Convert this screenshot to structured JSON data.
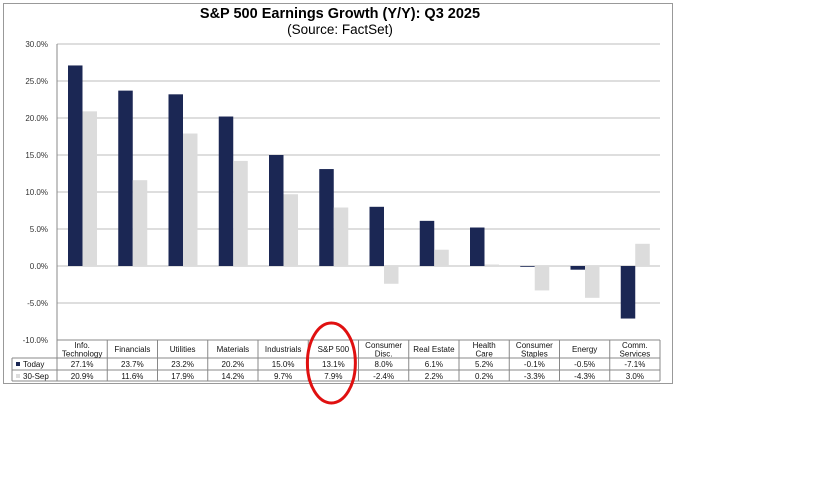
{
  "chart_data": {
    "type": "bar",
    "title": "S&P 500 Earnings Growth (Y/Y): Q3 2025",
    "subtitle": "(Source: FactSet)",
    "xlabel": "",
    "ylabel": "",
    "ylim": [
      -10,
      30
    ],
    "yticks": [
      "30.0%",
      "25.0%",
      "20.0%",
      "15.0%",
      "10.0%",
      "5.0%",
      "0.0%",
      "-5.0%",
      "-10.0%"
    ],
    "ytick_values": [
      30,
      25,
      20,
      15,
      10,
      5,
      0,
      -5,
      -10
    ],
    "grid": true,
    "legend_placement": "data-table-left",
    "categories": [
      [
        "Info.",
        "Technology"
      ],
      [
        "Financials"
      ],
      [
        "Utilities"
      ],
      [
        "Materials"
      ],
      [
        "Industrials"
      ],
      [
        "S&P 500"
      ],
      [
        "Consumer",
        "Disc."
      ],
      [
        "Real Estate"
      ],
      [
        "Health",
        "Care"
      ],
      [
        "Consumer",
        "Staples"
      ],
      [
        "Energy"
      ],
      [
        "Comm.",
        "Services"
      ]
    ],
    "series": [
      {
        "name": "Today",
        "color": "#1b2754",
        "values": [
          27.1,
          23.7,
          23.2,
          20.2,
          15.0,
          13.1,
          8.0,
          6.1,
          5.2,
          -0.1,
          -0.5,
          -7.1
        ],
        "labels": [
          "27.1%",
          "23.7%",
          "23.2%",
          "20.2%",
          "15.0%",
          "13.1%",
          "8.0%",
          "6.1%",
          "5.2%",
          "-0.1%",
          "-0.5%",
          "-7.1%"
        ]
      },
      {
        "name": "30-Sep",
        "color": "#dcdcdc",
        "values": [
          20.9,
          11.6,
          17.9,
          14.2,
          9.7,
          7.9,
          -2.4,
          2.2,
          0.2,
          -3.3,
          -4.3,
          3.0
        ],
        "labels": [
          "20.9%",
          "11.6%",
          "17.9%",
          "14.2%",
          "9.7%",
          "7.9%",
          "-2.4%",
          "2.2%",
          "0.2%",
          "-3.3%",
          "-4.3%",
          "3.0%"
        ]
      }
    ],
    "annotation": {
      "type": "red-circle",
      "target": "S&P 500",
      "color": "#e01010"
    }
  }
}
